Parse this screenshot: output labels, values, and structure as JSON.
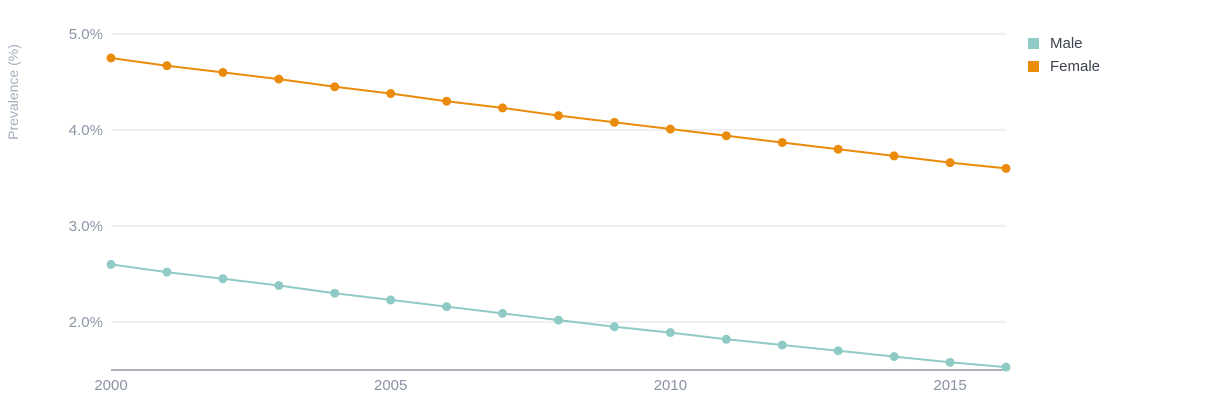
{
  "chart_data": {
    "type": "line",
    "title": "",
    "xlabel": "",
    "ylabel": "Prevalence (%)",
    "x": [
      2000,
      2001,
      2002,
      2003,
      2004,
      2005,
      2006,
      2007,
      2008,
      2009,
      2010,
      2011,
      2012,
      2013,
      2014,
      2015,
      2016
    ],
    "xlim": [
      2000,
      2016
    ],
    "ylim": [
      1.5,
      5.0
    ],
    "x_ticks": [
      2000,
      2005,
      2010,
      2015
    ],
    "x_tick_labels": [
      "2000",
      "2005",
      "2010",
      "2015"
    ],
    "y_ticks": [
      2.0,
      3.0,
      4.0,
      5.0
    ],
    "y_tick_labels": [
      "2.0%",
      "3.0%",
      "4.0%",
      "5.0%"
    ],
    "grid": true,
    "legend_position": "top-right",
    "series": [
      {
        "name": "Male",
        "color": "#8fcac6",
        "values": [
          2.6,
          2.52,
          2.45,
          2.38,
          2.3,
          2.23,
          2.16,
          2.09,
          2.02,
          1.95,
          1.89,
          1.82,
          1.76,
          1.7,
          1.64,
          1.58,
          1.53
        ]
      },
      {
        "name": "Female",
        "color": "#ea8b0b",
        "values": [
          4.75,
          4.67,
          4.6,
          4.53,
          4.45,
          4.38,
          4.3,
          4.23,
          4.15,
          4.08,
          4.01,
          3.94,
          3.87,
          3.8,
          3.73,
          3.66,
          3.6
        ]
      }
    ],
    "colors": {
      "grid": "#dde1e8",
      "axis": "#5b6375"
    }
  }
}
